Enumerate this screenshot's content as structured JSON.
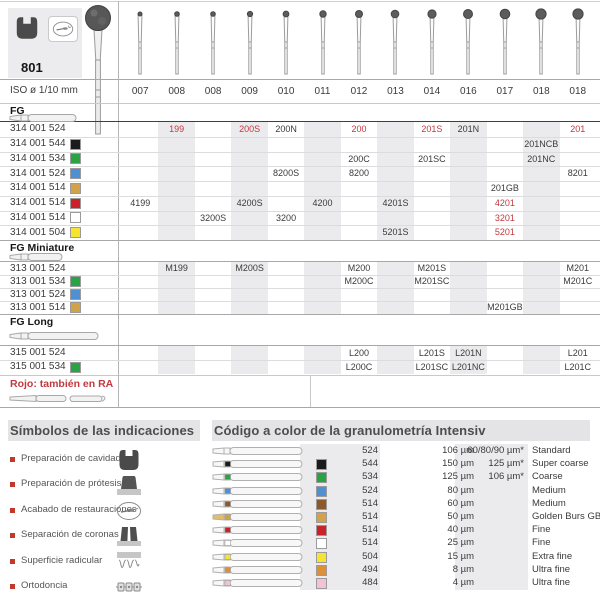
{
  "colors": {
    "red_text": "#c13a40",
    "band": "#ebebed",
    "chips": {
      "black": "#1b1b1b",
      "green": "#2ba344",
      "blue": "#4e90d1",
      "gold": "#d2a24b",
      "red": "#cb2229",
      "white": "#ffffff",
      "yellow": "#f6e431",
      "brown": "#8a5a2a",
      "orange": "#dd9038",
      "pink": "#f3c3d3"
    }
  },
  "catalog": {
    "product_number": "801",
    "header_icons": [
      "cavity-prep-icon",
      "restoration-finishing-icon"
    ],
    "iso_label": "ISO ø 1/10 mm",
    "iso_values": [
      "007",
      "008",
      "008",
      "009",
      "010",
      "011",
      "012",
      "013",
      "014",
      "016",
      "017",
      "018",
      "018"
    ],
    "footnote": "Rojo: también en RA",
    "sections": [
      {
        "label": "FG",
        "rows": [
          {
            "code": "314 001 524",
            "chip": null,
            "cells": [
              {
                "col": 2,
                "text": "199",
                "red": true
              },
              {
                "col": 4,
                "text": "200S",
                "red": true
              },
              {
                "col": 5,
                "text": "200N",
                "red": false
              },
              {
                "col": 7,
                "text": "200",
                "red": true
              },
              {
                "col": 9,
                "text": "201S",
                "red": true
              },
              {
                "col": 10,
                "text": "201N",
                "red": false
              },
              {
                "col": 13,
                "text": "201",
                "red": true
              }
            ]
          },
          {
            "code": "314 001 544",
            "chip": "black",
            "cells": [
              {
                "col": 12,
                "text": "201NCB",
                "red": false
              }
            ]
          },
          {
            "code": "314 001 534",
            "chip": "green",
            "cells": [
              {
                "col": 7,
                "text": "200C",
                "red": false
              },
              {
                "col": 9,
                "text": "201SC",
                "red": false
              },
              {
                "col": 12,
                "text": "201NC",
                "red": false
              }
            ]
          },
          {
            "code": "314 001 524",
            "chip": "blue",
            "cells": [
              {
                "col": 5,
                "text": "8200S",
                "red": false
              },
              {
                "col": 7,
                "text": "8200",
                "red": false
              },
              {
                "col": 13,
                "text": "8201",
                "red": false
              }
            ]
          },
          {
            "code": "314 001 514",
            "chip": "gold",
            "cells": [
              {
                "col": 11,
                "text": "201GB",
                "red": false
              }
            ]
          },
          {
            "code": "314 001 514",
            "chip": "red",
            "cells": [
              {
                "col": 1,
                "text": "4199",
                "red": false
              },
              {
                "col": 4,
                "text": "4200S",
                "red": false
              },
              {
                "col": 6,
                "text": "4200",
                "red": false
              },
              {
                "col": 8,
                "text": "4201S",
                "red": false
              },
              {
                "col": 11,
                "text": "4201",
                "red": true
              }
            ]
          },
          {
            "code": "314 001 514",
            "chip": "white",
            "cells": [
              {
                "col": 3,
                "text": "3200S",
                "red": false
              },
              {
                "col": 5,
                "text": "3200",
                "red": false
              },
              {
                "col": 11,
                "text": "3201",
                "red": true
              }
            ]
          },
          {
            "code": "314 001 504",
            "chip": "yellow",
            "cells": [
              {
                "col": 8,
                "text": "5201S",
                "red": false
              },
              {
                "col": 11,
                "text": "5201",
                "red": true
              }
            ]
          }
        ]
      },
      {
        "label": "FG Miniature",
        "rows": [
          {
            "code": "313 001 524",
            "chip": null,
            "cells": [
              {
                "col": 2,
                "text": "M199",
                "red": false
              },
              {
                "col": 4,
                "text": "M200S",
                "red": false
              },
              {
                "col": 7,
                "text": "M200",
                "red": false
              },
              {
                "col": 9,
                "text": "M201S",
                "red": false
              },
              {
                "col": 13,
                "text": "M201",
                "red": false
              }
            ]
          },
          {
            "code": "313 001 534",
            "chip": "green",
            "cells": [
              {
                "col": 7,
                "text": "M200C",
                "red": false
              },
              {
                "col": 9,
                "text": "M201SC",
                "red": false
              },
              {
                "col": 13,
                "text": "M201C",
                "red": false
              }
            ]
          },
          {
            "code": "313 001 524",
            "chip": "blue",
            "cells": []
          },
          {
            "code": "313 001 514",
            "chip": "gold",
            "cells": [
              {
                "col": 11,
                "text": "M201GB",
                "red": false
              }
            ]
          }
        ]
      },
      {
        "label": "FG Long",
        "rows": [
          {
            "code": "315 001 524",
            "chip": null,
            "cells": [
              {
                "col": 7,
                "text": "L200",
                "red": false
              },
              {
                "col": 9,
                "text": "L201S",
                "red": false
              },
              {
                "col": 10,
                "text": "L201N",
                "red": false
              },
              {
                "col": 13,
                "text": "L201",
                "red": false
              }
            ]
          },
          {
            "code": "315 001 534",
            "chip": "green",
            "cells": [
              {
                "col": 7,
                "text": "L200C",
                "red": false
              },
              {
                "col": 9,
                "text": "L201SC",
                "red": false
              },
              {
                "col": 10,
                "text": "L201NC",
                "red": false
              },
              {
                "col": 13,
                "text": "L201C",
                "red": false
              }
            ]
          }
        ]
      }
    ]
  },
  "symbols": {
    "title": "Símbolos de las indicaciones",
    "items": [
      {
        "label": "Preparación de cavidades",
        "icon": "cavity-prep-icon"
      },
      {
        "label": "Preparación de prótesis",
        "icon": "prosthesis-icon"
      },
      {
        "label": "Acabado de restauraciones",
        "icon": "restoration-finishing-icon"
      },
      {
        "label": "Separación de coronas",
        "icon": "crown-separation-icon"
      },
      {
        "label": "Superficie radicular",
        "icon": "root-surface-icon"
      },
      {
        "label": "Ortodoncia",
        "icon": "orthodontics-icon"
      }
    ]
  },
  "granulometry": {
    "title": "Código a color de la granulometría Intensiv",
    "rows": [
      {
        "chip": null,
        "code": "524",
        "size": "106 µm",
        "alt": "60/80/90 µm*",
        "grade": "Standard"
      },
      {
        "chip": "black",
        "code": "544",
        "size": "150 µm",
        "alt": "125 µm*",
        "grade": "Super coarse"
      },
      {
        "chip": "green",
        "code": "534",
        "size": "125 µm",
        "alt": "106 µm*",
        "grade": "Coarse"
      },
      {
        "chip": "blue",
        "code": "524",
        "size": "80 µm",
        "alt": "",
        "grade": "Medium"
      },
      {
        "chip": "brown",
        "code": "514",
        "size": "60 µm",
        "alt": "",
        "grade": "Medium"
      },
      {
        "chip": "gold",
        "code": "514",
        "size": "50 µm",
        "alt": "",
        "grade": "Golden Burs GB"
      },
      {
        "chip": "red",
        "code": "514",
        "size": "40 µm",
        "alt": "",
        "grade": "Fine"
      },
      {
        "chip": "white",
        "code": "514",
        "size": "25 µm",
        "alt": "",
        "grade": "Fine"
      },
      {
        "chip": "yellow",
        "code": "504",
        "size": "15 µm",
        "alt": "",
        "grade": "Extra fine"
      },
      {
        "chip": "orange",
        "code": "494",
        "size": "8 µm",
        "alt": "",
        "grade": "Ultra fine"
      },
      {
        "chip": "pink",
        "code": "484",
        "size": "4 µm",
        "alt": "",
        "grade": "Ultra fine"
      }
    ]
  }
}
